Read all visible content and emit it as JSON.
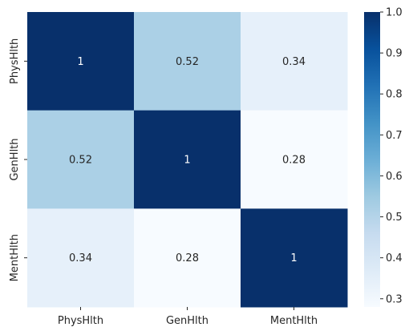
{
  "chart_data": {
    "type": "heatmap",
    "title": "",
    "xlabel": "",
    "ylabel": "",
    "x_categories": [
      "PhysHlth",
      "GenHlth",
      "MentHlth"
    ],
    "y_categories": [
      "PhysHlth",
      "GenHlth",
      "MentHlth"
    ],
    "values": [
      [
        1,
        0.52,
        0.34
      ],
      [
        0.52,
        1,
        0.28
      ],
      [
        0.34,
        0.28,
        1
      ]
    ],
    "annotations": [
      [
        "1",
        "0.52",
        "0.34"
      ],
      [
        "0.52",
        "1",
        "0.28"
      ],
      [
        "0.34",
        "0.28",
        "1"
      ]
    ],
    "colormap": "Blues",
    "colorbar": {
      "vmin": 0.28,
      "vmax": 1.0,
      "ticks": [
        0.3,
        0.4,
        0.5,
        0.6,
        0.7,
        0.8,
        0.9,
        1.0
      ],
      "tick_labels": [
        "0.3",
        "0.4",
        "0.5",
        "0.6",
        "0.7",
        "0.8",
        "0.9",
        "1.0"
      ]
    }
  }
}
